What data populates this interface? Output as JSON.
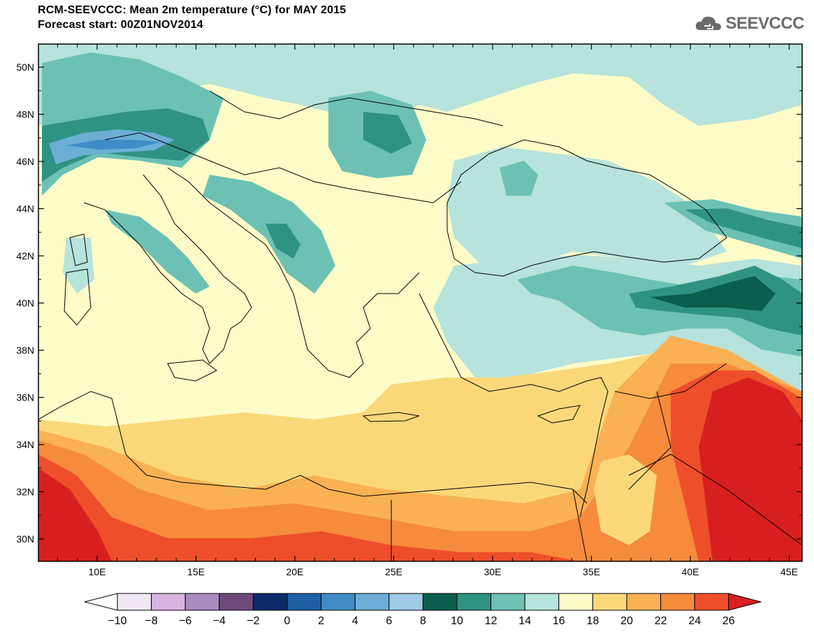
{
  "title_line1": "RCM-SEEVCCC: Mean 2m temperature (°C) for MAY 2015",
  "title_line2": "Forecast start: 00Z01NOV2014",
  "logo_text": "SEEVCCC",
  "lat_labels": [
    "50N",
    "48N",
    "46N",
    "44N",
    "42N",
    "40N",
    "38N",
    "36N",
    "34N",
    "32N",
    "30N"
  ],
  "lon_labels": [
    "10E",
    "15E",
    "20E",
    "25E",
    "30E",
    "35E",
    "40E",
    "45E"
  ],
  "colorbar": {
    "colors": [
      "#ffffff",
      "#f0e6f4",
      "#d8b4e0",
      "#a98bbf",
      "#6e4a7a",
      "#0d2b6b",
      "#1f5ea4",
      "#3f8cc6",
      "#6daed7",
      "#9fcae3",
      "#0a5e4e",
      "#2f9383",
      "#6cc1b4",
      "#b6e3dc",
      "#fdfbc8",
      "#fad87a",
      "#f9b154",
      "#f68b3c",
      "#ee4f2a",
      "#d81f1f"
    ],
    "labels": [
      "-10",
      "-8",
      "-6",
      "-4",
      "-2",
      "0",
      "2",
      "4",
      "6",
      "8",
      "10",
      "12",
      "14",
      "16",
      "18",
      "20",
      "22",
      "24",
      "26"
    ]
  },
  "legend_colors": {
    "cool_teal": "#b6e3dc",
    "teal": "#6cc1b4",
    "dark_teal": "#2f9383",
    "darkest_teal": "#0a5e4e",
    "blue": "#6daed7",
    "pale_yellow": "#fdfbc8",
    "yellow": "#fad87a",
    "orange": "#f9b154",
    "dark_orange": "#f68b3c",
    "red_orange": "#ee4f2a",
    "red": "#d81f1f"
  }
}
